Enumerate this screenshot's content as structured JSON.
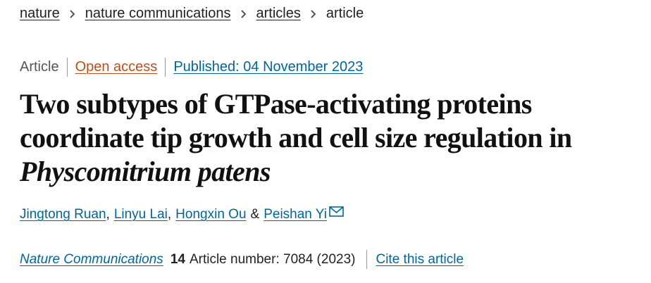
{
  "breadcrumb": [
    "nature",
    "nature communications",
    "articles",
    "article"
  ],
  "meta": {
    "type": "Article",
    "access": "Open access",
    "published": "Published: 04 November 2023"
  },
  "title": {
    "lines": [
      "Two subtypes of GTPase-activating proteins",
      "coordinate tip growth and cell size regulation in"
    ],
    "species": "Physcomitrium patens"
  },
  "authors": {
    "names": [
      "Jingtong Ruan",
      "Linyu Lai",
      "Hongxin Ou",
      "Peishan Yi"
    ],
    "separator": ",",
    "conjunction": "&"
  },
  "citation": {
    "journal": "Nature Communications",
    "volume": "14",
    "article": "Article number: 7084 (2023)",
    "cite": "Cite this article"
  }
}
